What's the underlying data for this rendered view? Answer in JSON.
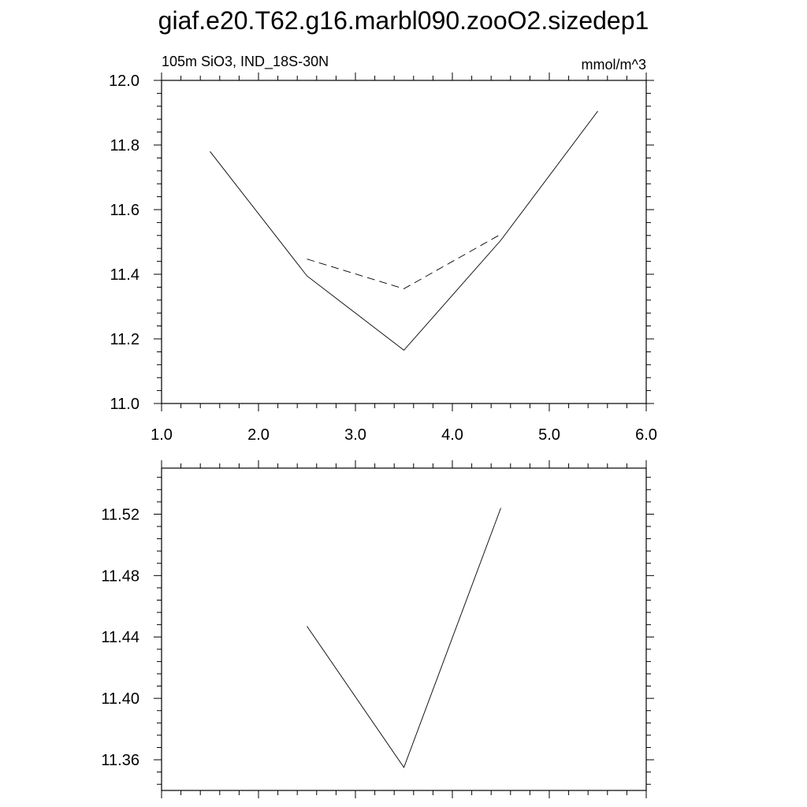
{
  "figure": {
    "title": "giaf.e20.T62.g16.marbl090.zooO2.sizedep1"
  },
  "chart_data": [
    {
      "type": "line",
      "left_string": "105m SiO3, IND_18S-30N",
      "right_string": "mmol/m^3",
      "xlim": [
        1.0,
        6.0
      ],
      "ylim": [
        11.0,
        12.0
      ],
      "x_ticks": [
        1.0,
        2.0,
        3.0,
        4.0,
        5.0,
        6.0
      ],
      "x_tick_labels": [
        "1.0",
        "2.0",
        "3.0",
        "4.0",
        "5.0",
        "6.0"
      ],
      "y_ticks": [
        11.0,
        11.2,
        11.4,
        11.6,
        11.8,
        12.0
      ],
      "y_tick_labels": [
        "11.0",
        "11.2",
        "11.4",
        "11.6",
        "11.8",
        "12.0"
      ],
      "grid": false,
      "series": [
        {
          "style": "solid",
          "x": [
            1.5,
            2.5,
            3.5,
            4.5,
            5.5
          ],
          "y": [
            11.78,
            11.395,
            11.165,
            11.505,
            11.905
          ]
        },
        {
          "style": "dashed",
          "x": [
            2.5,
            3.5,
            4.5
          ],
          "y": [
            11.447,
            11.355,
            11.524
          ]
        }
      ]
    },
    {
      "type": "line",
      "xlim": [
        1.0,
        6.0
      ],
      "ylim": [
        11.34,
        11.55
      ],
      "x_ticks": [
        1.0,
        2.0,
        3.0,
        4.0,
        5.0,
        6.0
      ],
      "x_tick_labels": [],
      "y_ticks": [
        11.36,
        11.4,
        11.44,
        11.48,
        11.52
      ],
      "y_tick_labels": [
        "11.36",
        "11.40",
        "11.44",
        "11.48",
        "11.52"
      ],
      "grid": false,
      "series": [
        {
          "style": "solid",
          "x": [
            2.5,
            3.5,
            4.5
          ],
          "y": [
            11.447,
            11.355,
            11.524
          ]
        }
      ]
    }
  ]
}
